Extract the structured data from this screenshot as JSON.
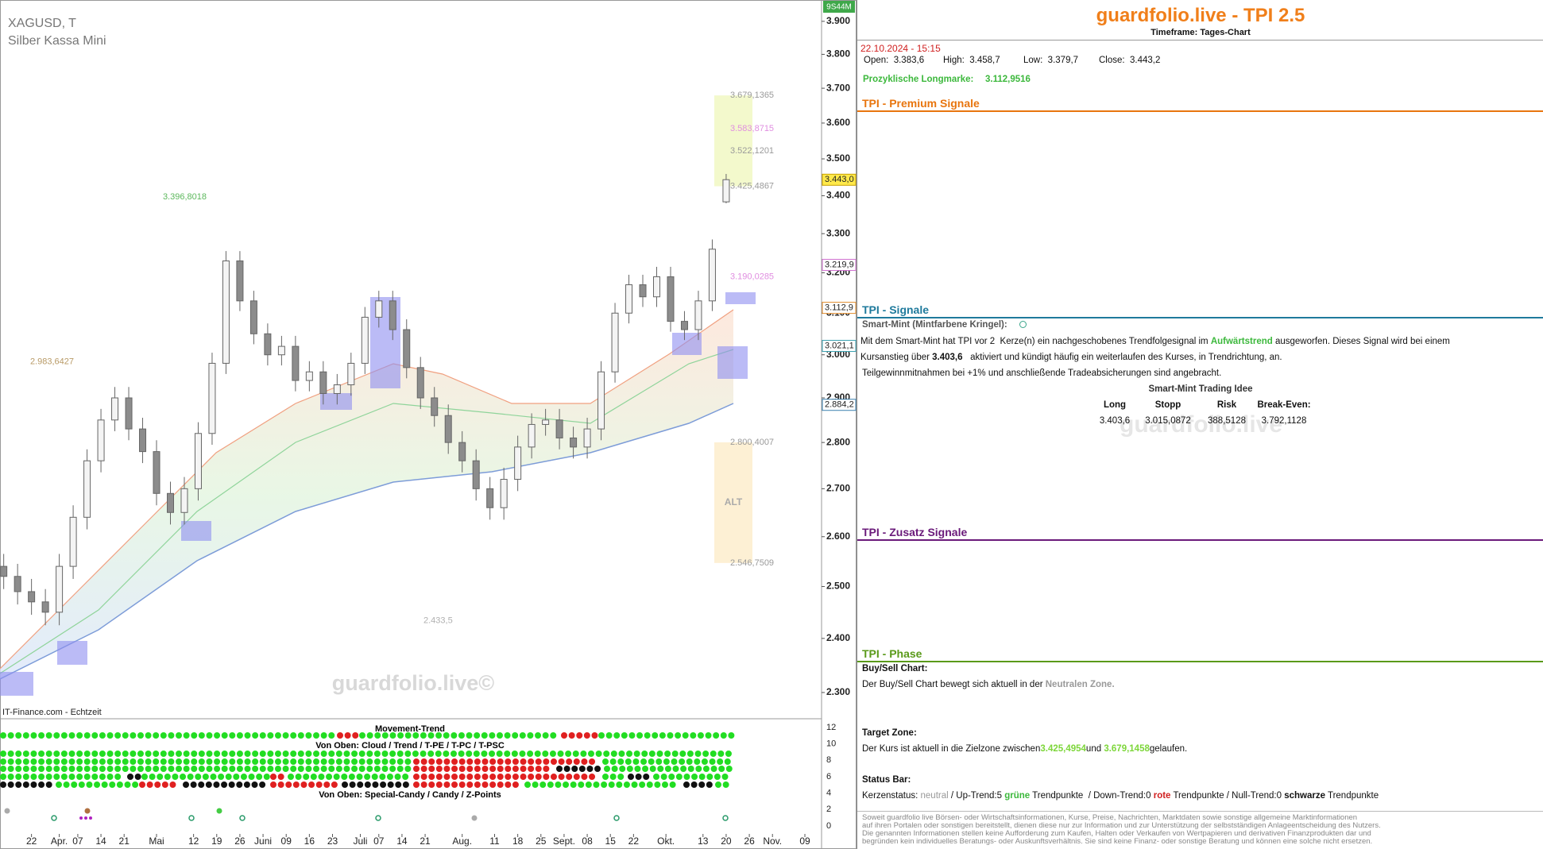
{
  "chart_data": {
    "type": "candlestick",
    "x": [
      -6,
      -3,
      0,
      3,
      6,
      9,
      12,
      15,
      18,
      21,
      24,
      27,
      30,
      33,
      36,
      39,
      42,
      45,
      48,
      51,
      54,
      57,
      60,
      63,
      66,
      69,
      72,
      75,
      78,
      81,
      84,
      87,
      90,
      93,
      96,
      99,
      102,
      105,
      108,
      111,
      114,
      117,
      120,
      123,
      126,
      129,
      132,
      135,
      138,
      141,
      144,
      147,
      150
    ],
    "open": [
      2540,
      2520,
      2490,
      2470,
      2450,
      2540,
      2640,
      2760,
      2850,
      2900,
      2830,
      2780,
      2690,
      2650,
      2700,
      2820,
      2980,
      3230,
      3130,
      3050,
      3000,
      3020,
      2940,
      2960,
      2910,
      2930,
      2980,
      3090,
      3130,
      3060,
      2970,
      2900,
      2860,
      2800,
      2760,
      2700,
      2660,
      2720,
      2790,
      2840,
      2850,
      2810,
      2790,
      2830,
      2960,
      3100,
      3170,
      3140,
      3190,
      3080,
      3060,
      3130,
      3383.6
    ],
    "high": [
      2565,
      2545,
      2515,
      2495,
      2565,
      2665,
      2785,
      2875,
      2925,
      2925,
      2855,
      2805,
      2715,
      2725,
      2845,
      3005,
      3255,
      3255,
      3155,
      3075,
      3045,
      3045,
      2985,
      2985,
      2955,
      3005,
      3115,
      3155,
      3155,
      3085,
      2995,
      2925,
      2885,
      2825,
      2785,
      2725,
      2745,
      2815,
      2865,
      2875,
      2875,
      2835,
      2855,
      2985,
      3125,
      3195,
      3195,
      3215,
      3215,
      3105,
      3155,
      3285,
      3458.7
    ],
    "low": [
      2495,
      2465,
      2445,
      2425,
      2425,
      2515,
      2615,
      2735,
      2825,
      2805,
      2755,
      2665,
      2625,
      2625,
      2675,
      2795,
      2955,
      3105,
      3025,
      2975,
      2975,
      2915,
      2915,
      2885,
      2885,
      2905,
      2955,
      3065,
      3035,
      2945,
      2875,
      2835,
      2775,
      2735,
      2675,
      2635,
      2635,
      2695,
      2765,
      2815,
      2785,
      2765,
      2765,
      2805,
      2935,
      3075,
      3115,
      3115,
      3055,
      3035,
      3035,
      3105,
      3379.7
    ],
    "close": [
      2520,
      2490,
      2470,
      2450,
      2540,
      2640,
      2760,
      2850,
      2900,
      2830,
      2780,
      2690,
      2650,
      2700,
      2820,
      2980,
      3230,
      3130,
      3050,
      3000,
      3020,
      2940,
      2960,
      2910,
      2930,
      2980,
      3090,
      3130,
      3060,
      2970,
      2900,
      2860,
      2800,
      2760,
      2700,
      2660,
      2720,
      2790,
      2840,
      2850,
      2810,
      2790,
      2830,
      2960,
      3100,
      3170,
      3140,
      3190,
      3080,
      3060,
      3130,
      3260,
      3443.2
    ],
    "up_color": "#f4f4f4",
    "down_color": "#8c8c8c",
    "wick_color": "#666666",
    "log_scale": true,
    "xlim": [
      -6.8,
      170.6
    ],
    "xticks": [
      {
        "value": 0,
        "label": "22"
      },
      {
        "value": 6,
        "label": "Apr."
      },
      {
        "value": 10,
        "label": "07"
      },
      {
        "value": 15,
        "label": "14"
      },
      {
        "value": 20,
        "label": "21"
      },
      {
        "value": 27,
        "label": "Mai"
      },
      {
        "value": 35,
        "label": "12"
      },
      {
        "value": 40,
        "label": "19"
      },
      {
        "value": 45,
        "label": "26"
      },
      {
        "value": 50,
        "label": "Juni"
      },
      {
        "value": 55,
        "label": "09"
      },
      {
        "value": 60,
        "label": "16"
      },
      {
        "value": 65,
        "label": "23"
      },
      {
        "value": 71,
        "label": "Juli"
      },
      {
        "value": 75,
        "label": "07"
      },
      {
        "value": 80,
        "label": "14"
      },
      {
        "value": 85,
        "label": "21"
      },
      {
        "value": 93,
        "label": "Aug."
      },
      {
        "value": 100,
        "label": "11"
      },
      {
        "value": 105,
        "label": "18"
      },
      {
        "value": 110,
        "label": "25"
      },
      {
        "value": 115,
        "label": "Sept."
      },
      {
        "value": 120,
        "label": "08"
      },
      {
        "value": 125,
        "label": "15"
      },
      {
        "value": 130,
        "label": "22"
      },
      {
        "value": 137,
        "label": "Okt."
      },
      {
        "value": 145,
        "label": "13"
      },
      {
        "value": 150,
        "label": "20"
      },
      {
        "value": 155,
        "label": "26"
      },
      {
        "value": 160,
        "label": "Nov."
      },
      {
        "value": 167,
        "label": "09"
      }
    ],
    "ylim": [
      2253,
      3966
    ],
    "yticks": [
      {
        "value": 3900,
        "label": "3.900"
      },
      {
        "value": 3800,
        "label": "3.800"
      },
      {
        "value": 3700,
        "label": "3.700"
      },
      {
        "value": 3600,
        "label": "3.600"
      },
      {
        "value": 3500,
        "label": "3.500"
      },
      {
        "value": 3400,
        "label": "3.400"
      },
      {
        "value": 3300,
        "label": "3.300"
      },
      {
        "value": 3200,
        "label": "3.200"
      },
      {
        "value": 3100,
        "label": "3.100"
      },
      {
        "value": 3000,
        "label": "3.000"
      },
      {
        "value": 2900,
        "label": "2.900"
      },
      {
        "value": 2800,
        "label": "2.800"
      },
      {
        "value": 2700,
        "label": "2.700"
      },
      {
        "value": 2600,
        "label": "2.600"
      },
      {
        "value": 2500,
        "label": "2.500"
      },
      {
        "value": 2400,
        "label": "2.400"
      },
      {
        "value": 2300,
        "label": "2.300"
      }
    ],
    "annotations": [
      {
        "value": 3679.1365,
        "label": "3.679,1365",
        "color": "#9a9a9a"
      },
      {
        "value": 3583.8715,
        "label": "3.583,8715",
        "color": "#e08ee0"
      },
      {
        "value": 3522.1201,
        "label": "3.522,1201",
        "color": "#9a9a9a"
      },
      {
        "value": 3425.4867,
        "label": "3.425,4867",
        "color": "#9a9a9a"
      },
      {
        "value": 3190.0285,
        "label": "3.190,0285",
        "color": "#e08ee0"
      },
      {
        "value": 2800.4007,
        "label": "2.800,4007",
        "color": "#9a9a9a"
      },
      {
        "value": 2546.7509,
        "label": "2.546,7509",
        "color": "#9a9a9a"
      },
      {
        "value": 3396.8018,
        "label": "3.396,8018",
        "color": "#5cb85c"
      },
      {
        "value": 2983.6427,
        "label": "2.983,6427",
        "color": "#b89a66"
      },
      {
        "value": 2433.5,
        "label": "2.433,5",
        "color": "#b0b0b0"
      }
    ],
    "alt_label": "ALT",
    "price_tags": [
      {
        "value": 3443.0,
        "label": "3.443,0",
        "color": "#c8a000",
        "fill": "#ffe94a"
      },
      {
        "value": 3219.9,
        "label": "3.219,9",
        "color": "#d070d0",
        "fill": "#ffffff"
      },
      {
        "value": 3112.9,
        "label": "3.112,9",
        "color": "#e08a2a",
        "fill": "#ffffff"
      },
      {
        "value": 3021.1,
        "label": "3.021,1",
        "color": "#3aa0b0",
        "fill": "#ffffff"
      },
      {
        "value": 2884.2,
        "label": "2.884,2",
        "color": "#3a80b0",
        "fill": "#ffffff"
      }
    ]
  },
  "header": {
    "symbol": "XAGUSD, T",
    "name": "Silber Kassa Mini",
    "source": "IT-Finance.com - Echtzeit",
    "watermark": "guardfolio.live©",
    "timer": "9S44M"
  },
  "indicators": {
    "movement_title": "Movement-Trend",
    "cloud_title": "Von Oben: Cloud / Trend / T-PE / T-PC / T-PSC",
    "candy_title": "Von Oben: Special-Candy / Candy / Z-Points",
    "yticks": [
      12,
      10,
      8,
      6,
      4,
      2,
      0
    ]
  },
  "panel": {
    "title": "guardfolio.live - TPI 2.5",
    "timeframe": "Timeframe: Tages-Chart",
    "datetime": "22.10.2024 - 15:15",
    "ohlc": [
      "Open:  3.383,6",
      "High:  3.458,7",
      "Low:  3.379,7",
      "Close:  3.443,2"
    ],
    "longmark": {
      "label": "Prozyklische Longmarke:",
      "value": "3.112,9516"
    },
    "premium": {
      "title": "TPI - Premium Signale"
    },
    "signals": {
      "title": "TPI - Signale",
      "smart_mint": "Smart-Mint (Mintfarbene Kringel):",
      "line1": [
        "Mit dem Smart-Mint hat TPI vor 2  Kerze(n) ein nachgeschobenes Trendfolgesignal im ",
        "Aufwärtstrend",
        " ausgeworfen. Dieses Signal wird bei einem"
      ],
      "line2": [
        "Kursanstieg über ",
        "3.403,6",
        "   aktiviert und kündigt häufig ein weiterlaufen des Kurses, in Trendrichtung, an."
      ],
      "line3": "Teilgewinnmitnahmen bei +1% und anschließende Tradeabsicherungen sind angebracht.",
      "idea_title": "Smart-Mint Trading Idee",
      "headers": [
        "Long",
        "Stopp",
        "Risk",
        "Break-Even:"
      ],
      "values": [
        "3.403,6",
        "3.015,0872",
        "388,5128",
        "3.792,1128"
      ],
      "watermark": "guardfolio.live"
    },
    "extra": {
      "title": "TPI - Zusatz Signale"
    },
    "phase": {
      "title": "TPI - Phase",
      "buysell_title": "Buy/Sell Chart:",
      "buysell": [
        "Der Buy/Sell Chart bewegt sich aktuell in der ",
        "Neutralen Zone."
      ],
      "target_title": "Target Zone:",
      "target": [
        "Der Kurs ist aktuell in die Zielzone zwischen",
        "3.425,4954",
        "und ",
        "3.679,1458",
        "gelaufen."
      ],
      "status_title": "Status Bar:",
      "status": [
        "Kerzenstatus: ",
        "neutral",
        " / Up-Trend:5 ",
        "grüne",
        " Trendpunkte  / Down-Trend:0 ",
        "rote",
        " Trendpunkte / Null-Trend:0 ",
        "schwarze",
        " Trendpunkte"
      ]
    },
    "disclaimer": [
      "Soweit guardfolio live Börsen- oder Wirtschaftsinformationen, Kurse, Preise, Nachrichten, Marktdaten sowie sonstige allgemeine Marktinformationen",
      "auf ihren Portalen oder sonstigen bereitstellt, dienen diese nur zur Information und zur Unterstützung der selbstständigen Anlageentscheidung des Nutzers.",
      "Die genannten Informationen stellen keine Aufforderung zum Kaufen, Halten oder Verkaufen von Wertpapieren und derivativen Finanzprodukten dar und",
      "begründen kein individuelles Beratungs- oder Auskunftsverhältnis. Sie sind keine Finanz- oder sonstige Beratung und können eine solche nicht ersetzen."
    ]
  }
}
